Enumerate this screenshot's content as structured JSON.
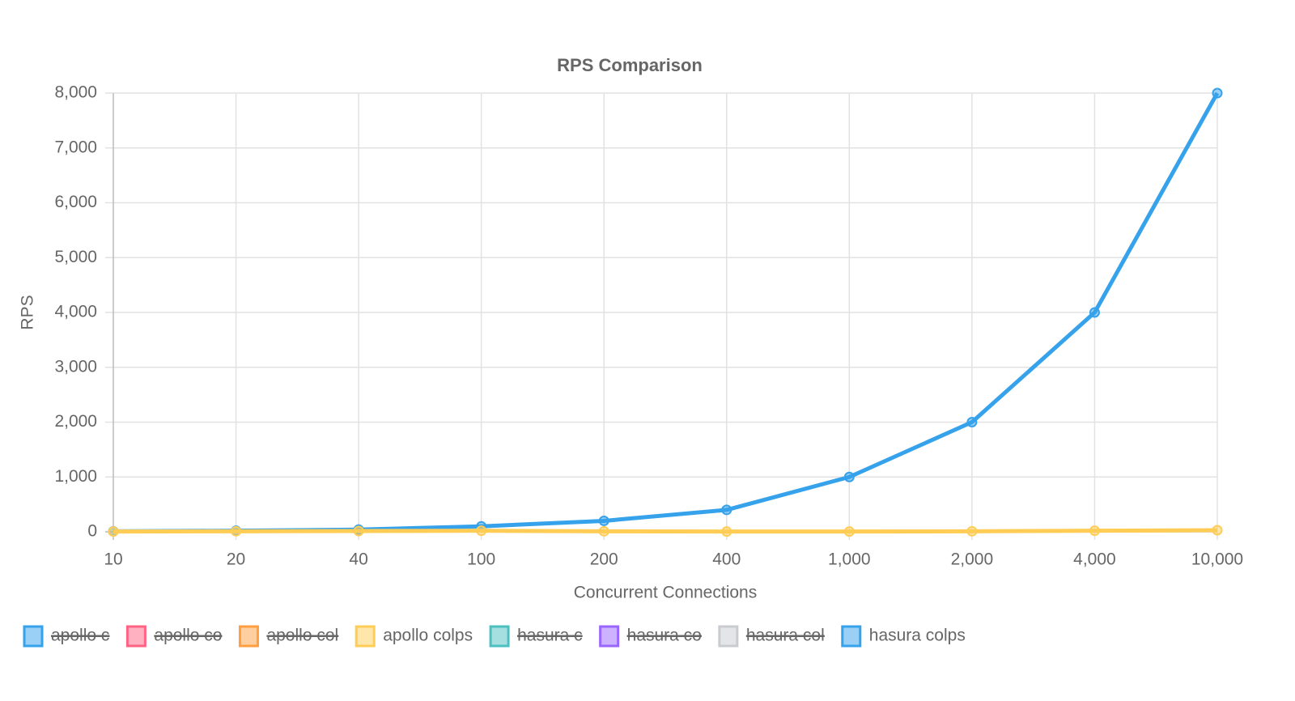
{
  "chart_data": {
    "type": "line",
    "title": "RPS Comparison",
    "x_label": "Concurrent Connections",
    "y_label": "RPS",
    "categories": [
      "10",
      "20",
      "40",
      "100",
      "200",
      "400",
      "1,000",
      "2,000",
      "4,000",
      "10,000"
    ],
    "ylim": [
      0,
      8000
    ],
    "yticks": [
      0,
      {
        "value": 1000,
        "label": "1,000"
      },
      {
        "value": 2000,
        "label": "2,000"
      },
      {
        "value": 3000,
        "label": "3,000"
      },
      {
        "value": 4000,
        "label": "4,000"
      },
      {
        "value": 5000,
        "label": "5,000"
      },
      {
        "value": 6000,
        "label": "6,000"
      },
      {
        "value": 7000,
        "label": "7,000"
      },
      {
        "value": 8000,
        "label": "8,000"
      }
    ],
    "grid": true,
    "legend": "bottom-left",
    "series": [
      {
        "name": "apollo c",
        "color": "#36a2eb",
        "hidden": true
      },
      {
        "name": "apollo co",
        "color": "#ff6384",
        "hidden": true
      },
      {
        "name": "apollo col",
        "color": "#ff9f40",
        "hidden": true
      },
      {
        "name": "apollo colps",
        "color": "#ffcd56",
        "values": [
          5,
          10,
          15,
          20,
          10,
          5,
          5,
          10,
          20,
          30
        ]
      },
      {
        "name": "hasura c",
        "color": "#4bc0c0",
        "hidden": true
      },
      {
        "name": "hasura co",
        "color": "#9966ff",
        "hidden": true
      },
      {
        "name": "hasura col",
        "color": "#c9cbcf",
        "hidden": true
      },
      {
        "name": "hasura colps",
        "color": "#36a2eb",
        "values": [
          10,
          20,
          40,
          100,
          200,
          400,
          1000,
          2000,
          4000,
          8000
        ]
      }
    ]
  }
}
